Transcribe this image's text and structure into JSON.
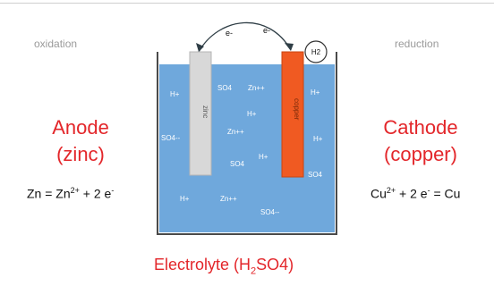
{
  "left": {
    "process": "oxidation",
    "title_line1": "Anode",
    "title_line2": "(zinc)",
    "equation_a": "Zn = Zn",
    "equation_sup": "2+",
    "equation_b": " + 2 e",
    "equation_sup2": "-"
  },
  "right": {
    "process": "reduction",
    "title_line1": "Cathode",
    "title_line2": "(copper)",
    "equation_a": "Cu",
    "equation_sup": "2+",
    "equation_b": " + 2 e",
    "equation_sup2": "-",
    "equation_c": " = Cu"
  },
  "electrolyte": {
    "caption_a": "Electrolyte (H",
    "caption_sub": "2",
    "caption_b": "SO4)"
  },
  "electrodes": {
    "zinc_label": "zinc",
    "copper_label": "copper"
  },
  "gas_label": "H2",
  "electron_labels": [
    "e-",
    "e-"
  ],
  "ions": [
    "H+",
    "SO4",
    "Zn++",
    "H+",
    "SO4--",
    "H+",
    "Zn++",
    "H+",
    "SO4",
    "H+",
    "SO4",
    "H+",
    "Zn++",
    "SO4--"
  ],
  "colors": {
    "electrolyte": "#6fa8dc",
    "zinc": "#d8d8d8",
    "copper": "#f05a22",
    "accent_red": "#e3262a"
  }
}
